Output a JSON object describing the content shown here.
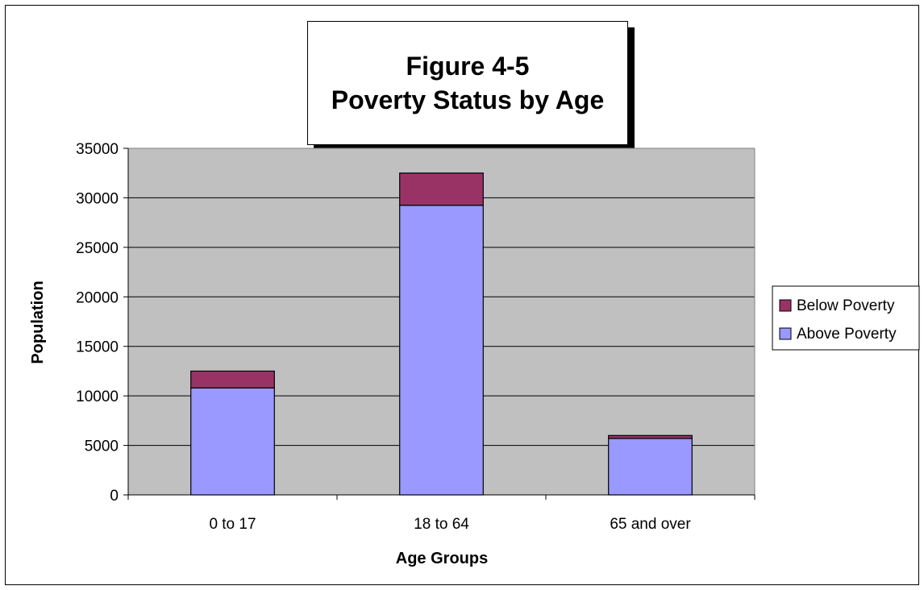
{
  "chart_data": {
    "type": "bar",
    "stacked": true,
    "title_lines": [
      "Figure 4-5",
      "Poverty Status by Age"
    ],
    "xlabel": "Age Groups",
    "ylabel": "Population",
    "categories": [
      "0 to 17",
      "18 to 64",
      "65 and over"
    ],
    "ylim": [
      0,
      35000
    ],
    "yticks": [
      0,
      5000,
      10000,
      15000,
      20000,
      25000,
      30000,
      35000
    ],
    "grid": true,
    "legend_position": "right",
    "series": [
      {
        "name": "Above Poverty",
        "values": [
          10800,
          29250,
          5700
        ],
        "color": "#9999ff"
      },
      {
        "name": "Below Poverty",
        "values": [
          1700,
          3250,
          300
        ],
        "color": "#993366"
      }
    ],
    "legend": [
      {
        "name": "Below Poverty",
        "color": "#993366"
      },
      {
        "name": "Above Poverty",
        "color": "#9999ff"
      }
    ],
    "plot_background": "#c0c0c0"
  }
}
